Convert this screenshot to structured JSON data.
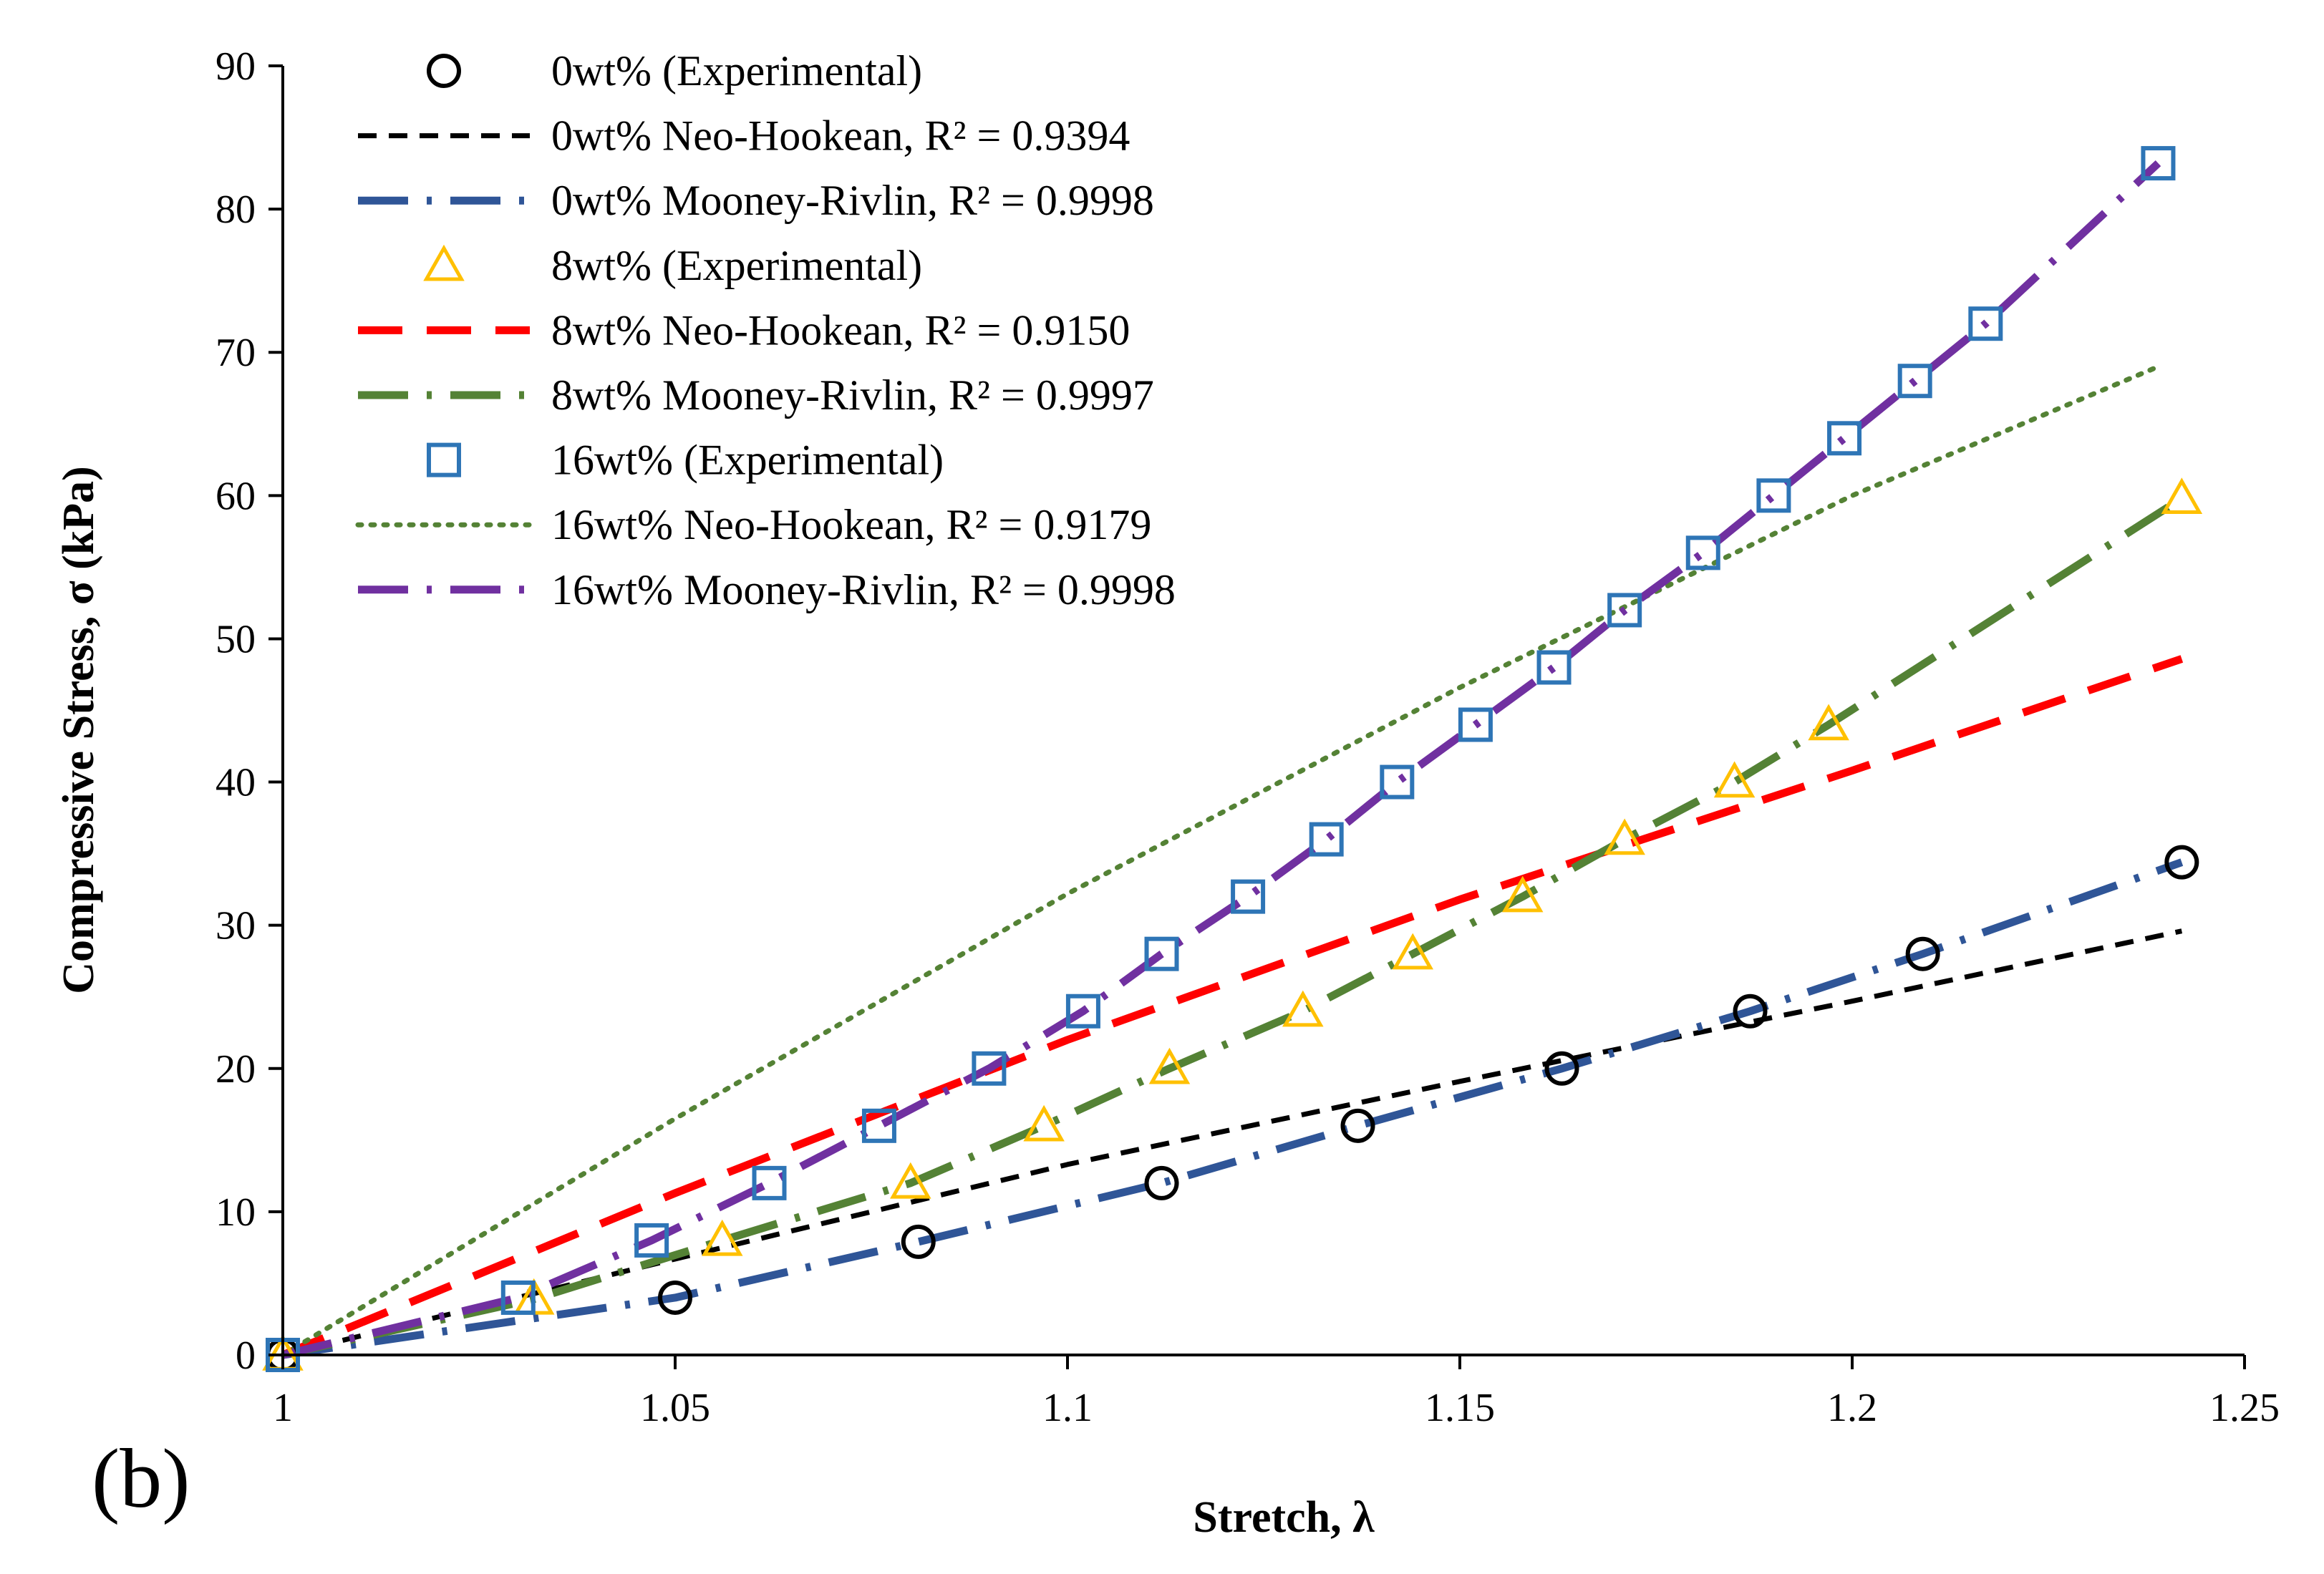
{
  "chart_data": {
    "type": "scatter",
    "title": "",
    "panel_label": "(b)",
    "xlabel": "Stretch, λ",
    "ylabel": "Compressive Stress, σ (kPa)",
    "xlim": [
      1,
      1.25
    ],
    "ylim": [
      0,
      90
    ],
    "xticks": [
      1,
      1.05,
      1.1,
      1.15,
      1.2,
      1.25
    ],
    "xtick_labels": [
      "1",
      "1.05",
      "1.1",
      "1.15",
      "1.2",
      "1.25"
    ],
    "yticks": [
      0,
      10,
      20,
      30,
      40,
      50,
      60,
      70,
      80,
      90
    ],
    "ytick_labels": [
      "0",
      "10",
      "20",
      "30",
      "40",
      "50",
      "60",
      "70",
      "80",
      "90"
    ],
    "grid": false,
    "legend_position": "top-left",
    "series": [
      {
        "name": "0wt% (Experimental)",
        "kind": "markers",
        "marker": "circle",
        "color": "#000000",
        "x": [
          1,
          1.05,
          1.081,
          1.112,
          1.137,
          1.163,
          1.187,
          1.209,
          1.242
        ],
        "y": [
          0,
          4,
          7.9,
          12,
          16,
          20,
          24,
          28,
          34.4
        ]
      },
      {
        "name": "0wt% Neo-Hookean, R² = 0.9394",
        "kind": "line",
        "dash": "short-dash",
        "color": "#000000",
        "x": [
          1,
          1.05,
          1.1,
          1.15,
          1.2,
          1.242
        ],
        "y": [
          0,
          6.7,
          13.3,
          19.1,
          24.7,
          29.6
        ]
      },
      {
        "name": "0wt% Mooney-Rivlin, R² = 0.9998",
        "kind": "line",
        "dash": "long-dash-dot",
        "color": "#2F5597",
        "x": [
          1,
          1.05,
          1.081,
          1.112,
          1.137,
          1.163,
          1.187,
          1.209,
          1.242
        ],
        "y": [
          0,
          4,
          7.9,
          12,
          16,
          20,
          24,
          28,
          34.4
        ]
      },
      {
        "name": "8wt% (Experimental)",
        "kind": "markers",
        "marker": "triangle",
        "color": "#FFC000",
        "x": [
          1,
          1.032,
          1.056,
          1.08,
          1.097,
          1.113,
          1.13,
          1.144,
          1.158,
          1.171,
          1.185,
          1.197,
          1.242
        ],
        "y": [
          0,
          3.9,
          8,
          12,
          16,
          20,
          24,
          28,
          32,
          36,
          40,
          44,
          59.8
        ]
      },
      {
        "name": "8wt% Neo-Hookean, R² = 0.9150",
        "kind": "line",
        "dash": "long-dash",
        "color": "#FF0000",
        "x": [
          1,
          1.05,
          1.1,
          1.15,
          1.2,
          1.242
        ],
        "y": [
          0,
          11.3,
          22,
          31.8,
          40.8,
          48.6
        ]
      },
      {
        "name": "8wt% Mooney-Rivlin, R² = 0.9997",
        "kind": "line",
        "dash": "long-dash-dot",
        "color": "#548235",
        "x": [
          1,
          1.032,
          1.056,
          1.08,
          1.097,
          1.113,
          1.13,
          1.144,
          1.158,
          1.171,
          1.185,
          1.197,
          1.242
        ],
        "y": [
          0,
          3.9,
          8,
          12,
          16,
          20,
          24,
          28,
          32,
          36,
          40,
          44,
          59.8
        ]
      },
      {
        "name": "16wt% (Experimental)",
        "kind": "markers",
        "marker": "square",
        "color": "#2E75B6",
        "x": [
          1,
          1.03,
          1.047,
          1.062,
          1.076,
          1.09,
          1.102,
          1.112,
          1.123,
          1.133,
          1.142,
          1.152,
          1.162,
          1.171,
          1.181,
          1.19,
          1.199,
          1.208,
          1.217,
          1.239
        ],
        "y": [
          0,
          4,
          8,
          12,
          16,
          20,
          24,
          28,
          32,
          36,
          40,
          44,
          48,
          52,
          56,
          60,
          64,
          68,
          72,
          83.2
        ]
      },
      {
        "name": "16wt% Neo-Hookean, R² = 0.9179",
        "kind": "line",
        "dash": "dotted",
        "color": "#548235",
        "x": [
          1,
          1.05,
          1.1,
          1.15,
          1.2,
          1.239
        ],
        "y": [
          0,
          16.5,
          32.2,
          46.6,
          60,
          69
        ]
      },
      {
        "name": "16wt% Mooney-Rivlin, R² = 0.9998",
        "kind": "line",
        "dash": "long-dash-dot",
        "color": "#7030A0",
        "x": [
          1,
          1.03,
          1.047,
          1.062,
          1.076,
          1.09,
          1.102,
          1.112,
          1.123,
          1.133,
          1.142,
          1.152,
          1.162,
          1.171,
          1.181,
          1.19,
          1.199,
          1.208,
          1.217,
          1.239
        ],
        "y": [
          0,
          4,
          8,
          12,
          16,
          20,
          24,
          28,
          32,
          36,
          40,
          44,
          48,
          52,
          56,
          60,
          64,
          68,
          72,
          83.2
        ]
      }
    ]
  }
}
